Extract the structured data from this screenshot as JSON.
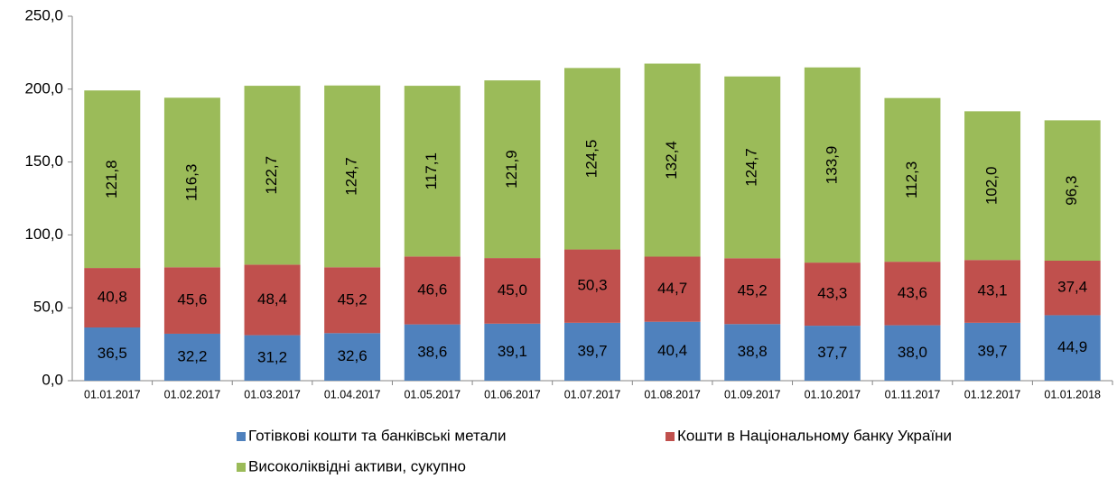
{
  "chart_data": {
    "type": "bar",
    "stacked": true,
    "categories": [
      "01.01.2017",
      "01.02.2017",
      "01.03.2017",
      "01.04.2017",
      "01.05.2017",
      "01.06.2017",
      "01.07.2017",
      "01.08.2017",
      "01.09.2017",
      "01.10.2017",
      "01.11.2017",
      "01.12.2017",
      "01.01.2018"
    ],
    "series": [
      {
        "name": "Готівкові кошти та банківські метали",
        "color": "#4f81bd",
        "values": [
          36.5,
          32.2,
          31.2,
          32.6,
          38.6,
          39.1,
          39.7,
          40.4,
          38.8,
          37.7,
          38.0,
          39.7,
          44.9
        ],
        "value_labels": [
          "36,5",
          "32,2",
          "31,2",
          "32,6",
          "38,6",
          "39,1",
          "39,7",
          "40,4",
          "38,8",
          "37,7",
          "38,0",
          "39,7",
          "44,9"
        ]
      },
      {
        "name": "Кошти в Національному банку України",
        "color": "#c0504d",
        "values": [
          40.8,
          45.6,
          48.4,
          45.2,
          46.6,
          45.0,
          50.3,
          44.7,
          45.2,
          43.3,
          43.6,
          43.1,
          37.4
        ],
        "value_labels": [
          "40,8",
          "45,6",
          "48,4",
          "45,2",
          "46,6",
          "45,0",
          "50,3",
          "44,7",
          "45,2",
          "43,3",
          "43,6",
          "43,1",
          "37,4"
        ]
      },
      {
        "name": "Високоліквідні активи, сукупно",
        "color": "#9bbb59",
        "values": [
          121.8,
          116.3,
          122.7,
          124.7,
          117.1,
          121.9,
          124.5,
          132.4,
          124.7,
          133.9,
          112.3,
          102.0,
          96.3
        ],
        "value_labels": [
          "121,8",
          "116,3",
          "122,7",
          "124,7",
          "117,1",
          "121,9",
          "124,5",
          "132,4",
          "124,7",
          "133,9",
          "112,3",
          "102,0",
          "96,3"
        ]
      }
    ],
    "ylim": [
      0,
      250
    ],
    "yticks": [
      {
        "value": 0,
        "label": "0,0"
      },
      {
        "value": 50,
        "label": "50,0"
      },
      {
        "value": 100,
        "label": "100,0"
      },
      {
        "value": 150,
        "label": "150,0"
      },
      {
        "value": 200,
        "label": "200,0"
      },
      {
        "value": 250,
        "label": "250,0"
      }
    ],
    "grid": false,
    "legend": "bottom"
  }
}
